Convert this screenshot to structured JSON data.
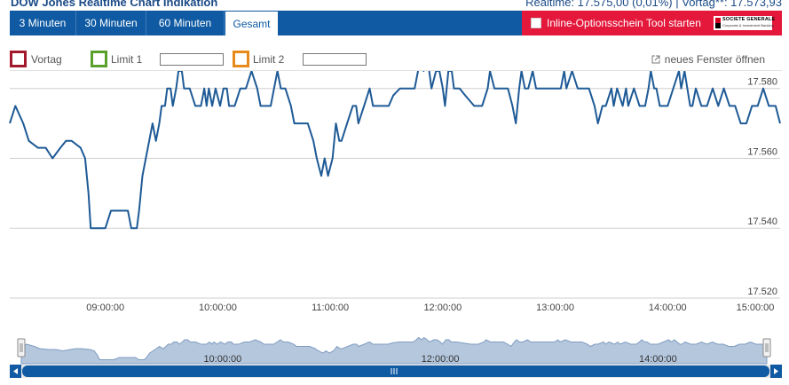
{
  "header": {
    "title": "DOW Jones Realtime Chart Indikation",
    "realtime_text": "Realtime: 17.575,00 (0,01%) | Vortag**: 17.573,93"
  },
  "tabs": [
    {
      "label": "3 Minuten",
      "active": false
    },
    {
      "label": "30 Minuten",
      "active": false
    },
    {
      "label": "60 Minuten",
      "active": false
    },
    {
      "label": "Gesamt",
      "active": true
    }
  ],
  "options_tool": {
    "label": "Inline-Optionsschein Tool starten",
    "logo_line1": "SOCIETE GENERALE",
    "logo_line2": "Corporate & Investment Banking"
  },
  "controls": {
    "vortag_label": "Vortag",
    "limit1_label": "Limit 1",
    "limit1_value": "",
    "limit2_label": "Limit 2",
    "limit2_value": "",
    "new_window_label": "neues Fenster öffnen"
  },
  "colors": {
    "accent": "#0f5aa3",
    "series": "#1e5a96",
    "vortag": "#a3182a",
    "limit1": "#5aa02c",
    "limit2": "#e88a1a",
    "tool_bg": "#e3183b",
    "navigator_fill": "#b5c7dd"
  },
  "chart_data": {
    "type": "line",
    "x_unit": "time of day (hours)",
    "xlim": [
      8.15,
      15.0
    ],
    "ylim": [
      17520,
      17585
    ],
    "y_ticks": [
      17520,
      17540,
      17560,
      17580
    ],
    "y_tick_labels": [
      "17.520",
      "17.540",
      "17.560",
      "17.580"
    ],
    "x_ticks": [
      9,
      10,
      11,
      12,
      13,
      14,
      15
    ],
    "x_tick_labels": [
      "09:00:00",
      "10:00:00",
      "11:00:00",
      "12:00:00",
      "13:00:00",
      "14:00:00",
      "15:00:00"
    ],
    "navigator_ticks": [
      10,
      12,
      14
    ],
    "navigator_tick_labels": [
      "10:00:00",
      "12:00:00",
      "14:00:00"
    ],
    "grid": true,
    "series": [
      {
        "values": [
          [
            8.15,
            17570
          ],
          [
            8.2,
            17575
          ],
          [
            8.27,
            17570
          ],
          [
            8.32,
            17565
          ],
          [
            8.4,
            17563
          ],
          [
            8.47,
            17563
          ],
          [
            8.53,
            17560
          ],
          [
            8.6,
            17563
          ],
          [
            8.65,
            17565
          ],
          [
            8.7,
            17565
          ],
          [
            8.78,
            17563
          ],
          [
            8.82,
            17560
          ],
          [
            8.85,
            17550
          ],
          [
            8.87,
            17540
          ],
          [
            8.9,
            17540
          ],
          [
            8.96,
            17540
          ],
          [
            9.0,
            17540
          ],
          [
            9.05,
            17545
          ],
          [
            9.12,
            17545
          ],
          [
            9.2,
            17545
          ],
          [
            9.23,
            17540
          ],
          [
            9.28,
            17540
          ],
          [
            9.3,
            17545
          ],
          [
            9.33,
            17555
          ],
          [
            9.36,
            17560
          ],
          [
            9.39,
            17565
          ],
          [
            9.42,
            17570
          ],
          [
            9.45,
            17565
          ],
          [
            9.48,
            17570
          ],
          [
            9.5,
            17575
          ],
          [
            9.53,
            17575
          ],
          [
            9.55,
            17580
          ],
          [
            9.58,
            17580
          ],
          [
            9.6,
            17575
          ],
          [
            9.63,
            17580
          ],
          [
            9.65,
            17585
          ],
          [
            9.68,
            17585
          ],
          [
            9.7,
            17580
          ],
          [
            9.75,
            17580
          ],
          [
            9.8,
            17575
          ],
          [
            9.85,
            17575
          ],
          [
            9.88,
            17580
          ],
          [
            9.9,
            17575
          ],
          [
            9.92,
            17580
          ],
          [
            9.95,
            17575
          ],
          [
            9.98,
            17580
          ],
          [
            10.02,
            17575
          ],
          [
            10.05,
            17580
          ],
          [
            10.08,
            17580
          ],
          [
            10.1,
            17575
          ],
          [
            10.15,
            17575
          ],
          [
            10.2,
            17580
          ],
          [
            10.25,
            17580
          ],
          [
            10.3,
            17585
          ],
          [
            10.35,
            17580
          ],
          [
            10.38,
            17575
          ],
          [
            10.42,
            17575
          ],
          [
            10.47,
            17575
          ],
          [
            10.5,
            17580
          ],
          [
            10.53,
            17585
          ],
          [
            10.56,
            17580
          ],
          [
            10.6,
            17580
          ],
          [
            10.65,
            17575
          ],
          [
            10.68,
            17570
          ],
          [
            10.72,
            17570
          ],
          [
            10.76,
            17570
          ],
          [
            10.8,
            17570
          ],
          [
            10.85,
            17565
          ],
          [
            10.88,
            17560
          ],
          [
            10.92,
            17555
          ],
          [
            10.95,
            17560
          ],
          [
            10.98,
            17555
          ],
          [
            11.02,
            17560
          ],
          [
            11.05,
            17570
          ],
          [
            11.08,
            17565
          ],
          [
            11.1,
            17565
          ],
          [
            11.15,
            17570
          ],
          [
            11.2,
            17575
          ],
          [
            11.23,
            17575
          ],
          [
            11.25,
            17570
          ],
          [
            11.3,
            17575
          ],
          [
            11.35,
            17580
          ],
          [
            11.38,
            17575
          ],
          [
            11.42,
            17575
          ],
          [
            11.47,
            17575
          ],
          [
            11.52,
            17575
          ],
          [
            11.56,
            17578
          ],
          [
            11.62,
            17580
          ],
          [
            11.7,
            17580
          ],
          [
            11.75,
            17580
          ],
          [
            11.78,
            17585
          ],
          [
            11.8,
            17590
          ],
          [
            11.83,
            17585
          ],
          [
            11.85,
            17590
          ],
          [
            11.88,
            17585
          ],
          [
            11.9,
            17580
          ],
          [
            11.94,
            17585
          ],
          [
            11.97,
            17585
          ],
          [
            12.0,
            17580
          ],
          [
            12.02,
            17575
          ],
          [
            12.05,
            17585
          ],
          [
            12.08,
            17585
          ],
          [
            12.1,
            17580
          ],
          [
            12.15,
            17580
          ],
          [
            12.2,
            17578
          ],
          [
            12.28,
            17575
          ],
          [
            12.35,
            17575
          ],
          [
            12.4,
            17580
          ],
          [
            12.42,
            17585
          ],
          [
            12.46,
            17580
          ],
          [
            12.52,
            17580
          ],
          [
            12.58,
            17580
          ],
          [
            12.62,
            17575
          ],
          [
            12.65,
            17570
          ],
          [
            12.68,
            17580
          ],
          [
            12.7,
            17585
          ],
          [
            12.73,
            17580
          ],
          [
            12.76,
            17580
          ],
          [
            12.8,
            17585
          ],
          [
            12.83,
            17580
          ],
          [
            12.88,
            17580
          ],
          [
            12.95,
            17580
          ],
          [
            13.0,
            17580
          ],
          [
            13.05,
            17580
          ],
          [
            13.08,
            17585
          ],
          [
            13.1,
            17580
          ],
          [
            13.15,
            17585
          ],
          [
            13.2,
            17580
          ],
          [
            13.25,
            17580
          ],
          [
            13.3,
            17580
          ],
          [
            13.35,
            17575
          ],
          [
            13.38,
            17570
          ],
          [
            13.42,
            17575
          ],
          [
            13.45,
            17575
          ],
          [
            13.5,
            17580
          ],
          [
            13.52,
            17575
          ],
          [
            13.55,
            17580
          ],
          [
            13.6,
            17575
          ],
          [
            13.63,
            17580
          ],
          [
            13.65,
            17575
          ],
          [
            13.7,
            17580
          ],
          [
            13.75,
            17575
          ],
          [
            13.8,
            17575
          ],
          [
            13.83,
            17580
          ],
          [
            13.85,
            17585
          ],
          [
            13.88,
            17580
          ],
          [
            13.9,
            17580
          ],
          [
            13.93,
            17575
          ],
          [
            13.97,
            17575
          ],
          [
            14.0,
            17575
          ],
          [
            14.05,
            17580
          ],
          [
            14.1,
            17585
          ],
          [
            14.12,
            17580
          ],
          [
            14.15,
            17585
          ],
          [
            14.2,
            17575
          ],
          [
            14.22,
            17575
          ],
          [
            14.25,
            17580
          ],
          [
            14.3,
            17575
          ],
          [
            14.35,
            17575
          ],
          [
            14.4,
            17580
          ],
          [
            14.45,
            17575
          ],
          [
            14.5,
            17580
          ],
          [
            14.55,
            17575
          ],
          [
            14.6,
            17575
          ],
          [
            14.65,
            17570
          ],
          [
            14.7,
            17570
          ],
          [
            14.75,
            17575
          ],
          [
            14.8,
            17575
          ],
          [
            14.85,
            17580
          ],
          [
            14.9,
            17575
          ],
          [
            14.96,
            17575
          ],
          [
            15.0,
            17570
          ]
        ]
      }
    ]
  }
}
